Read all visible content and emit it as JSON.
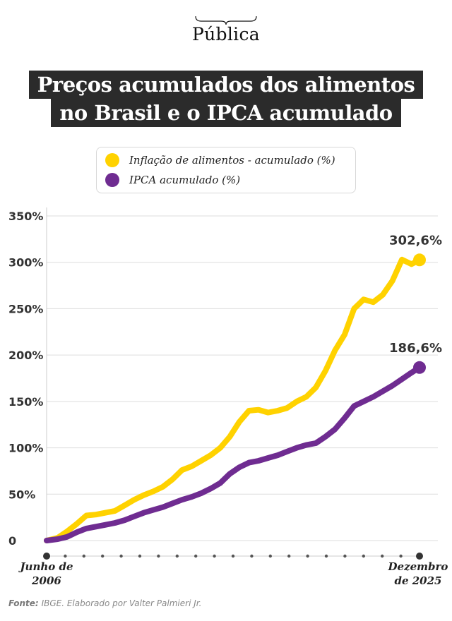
{
  "brand": {
    "name": "Pública"
  },
  "title_lines": [
    "Preços acumulados dos alimentos",
    "no Brasil e o IPCA acumulado"
  ],
  "legend": [
    {
      "label": "Inflação de alimentos - acumulado (%)",
      "color": "#ffd200"
    },
    {
      "label": "IPCA acumulado (%)",
      "color": "#6f2c91"
    }
  ],
  "source": {
    "prefix": "Fonte:",
    "text": "IBGE. Elaborado por Valter Palmieri Jr."
  },
  "chart_data": {
    "type": "line",
    "title": "Preços acumulados dos alimentos no Brasil e o IPCA acumulado",
    "xlabel": "",
    "ylabel": "",
    "ylim": [
      0,
      350
    ],
    "yticks": [
      "0",
      "50%",
      "100%",
      "150%",
      "200%",
      "250%",
      "300%",
      "350%"
    ],
    "ytick_values": [
      0,
      50,
      100,
      150,
      200,
      250,
      300,
      350
    ],
    "x_start_label": "Junho de 2006",
    "x_end_label": "Dezembro de 2025",
    "x_start_label_lines": [
      "Junho de",
      "2006"
    ],
    "x_end_label_lines": [
      "Dezembro",
      "de 2025"
    ],
    "x_range": [
      2006.42,
      2025.92
    ],
    "grid": true,
    "series": [
      {
        "name": "Inflação de alimentos - acumulado (%)",
        "color": "#ffd200",
        "end_label": "302,6%",
        "points": [
          [
            2006.42,
            0
          ],
          [
            2007.0,
            3
          ],
          [
            2007.5,
            10
          ],
          [
            2008.0,
            18
          ],
          [
            2008.5,
            27
          ],
          [
            2009.0,
            28
          ],
          [
            2009.5,
            30
          ],
          [
            2010.0,
            32
          ],
          [
            2010.5,
            38
          ],
          [
            2011.0,
            44
          ],
          [
            2011.5,
            49
          ],
          [
            2012.0,
            53
          ],
          [
            2012.5,
            58
          ],
          [
            2013.0,
            66
          ],
          [
            2013.5,
            76
          ],
          [
            2014.0,
            80
          ],
          [
            2014.5,
            86
          ],
          [
            2015.0,
            92
          ],
          [
            2015.5,
            100
          ],
          [
            2016.0,
            112
          ],
          [
            2016.5,
            128
          ],
          [
            2017.0,
            140
          ],
          [
            2017.5,
            141
          ],
          [
            2018.0,
            138
          ],
          [
            2018.5,
            140
          ],
          [
            2019.0,
            143
          ],
          [
            2019.5,
            150
          ],
          [
            2020.0,
            155
          ],
          [
            2020.5,
            165
          ],
          [
            2021.0,
            183
          ],
          [
            2021.5,
            205
          ],
          [
            2022.0,
            222
          ],
          [
            2022.5,
            250
          ],
          [
            2023.0,
            260
          ],
          [
            2023.5,
            257
          ],
          [
            2024.0,
            265
          ],
          [
            2024.5,
            280
          ],
          [
            2025.0,
            303
          ],
          [
            2025.5,
            298
          ],
          [
            2025.92,
            302.6
          ]
        ]
      },
      {
        "name": "IPCA acumulado (%)",
        "color": "#6f2c91",
        "end_label": "186,6%",
        "points": [
          [
            2006.42,
            0
          ],
          [
            2007.0,
            1.5
          ],
          [
            2007.5,
            4
          ],
          [
            2008.0,
            9
          ],
          [
            2008.5,
            13
          ],
          [
            2009.0,
            15
          ],
          [
            2009.5,
            17
          ],
          [
            2010.0,
            19
          ],
          [
            2010.5,
            22
          ],
          [
            2011.0,
            26
          ],
          [
            2011.5,
            30
          ],
          [
            2012.0,
            33
          ],
          [
            2012.5,
            36
          ],
          [
            2013.0,
            40
          ],
          [
            2013.5,
            44
          ],
          [
            2014.0,
            47
          ],
          [
            2014.5,
            51
          ],
          [
            2015.0,
            56
          ],
          [
            2015.5,
            62
          ],
          [
            2016.0,
            72
          ],
          [
            2016.5,
            79
          ],
          [
            2017.0,
            84
          ],
          [
            2017.5,
            86
          ],
          [
            2018.0,
            89
          ],
          [
            2018.5,
            92
          ],
          [
            2019.0,
            96
          ],
          [
            2019.5,
            100
          ],
          [
            2020.0,
            103
          ],
          [
            2020.5,
            105
          ],
          [
            2021.0,
            112
          ],
          [
            2021.5,
            120
          ],
          [
            2022.0,
            132
          ],
          [
            2022.5,
            145
          ],
          [
            2023.0,
            150
          ],
          [
            2023.5,
            155
          ],
          [
            2024.0,
            161
          ],
          [
            2024.5,
            167
          ],
          [
            2025.0,
            174
          ],
          [
            2025.5,
            181
          ],
          [
            2025.92,
            186.6
          ]
        ]
      }
    ]
  }
}
